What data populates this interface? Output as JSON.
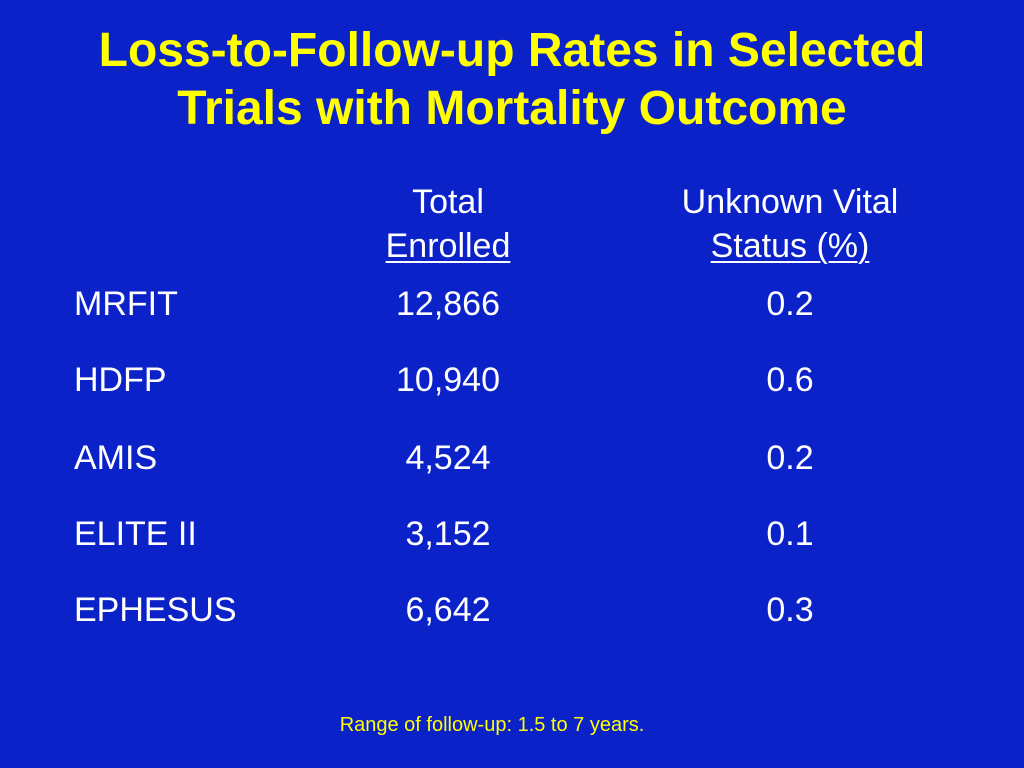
{
  "title": {
    "line1": "Loss-to-Follow-up Rates in Selected",
    "line2": "Trials with Mortality Outcome"
  },
  "table": {
    "headers": {
      "total": [
        "Total",
        "Enrolled"
      ],
      "vital": [
        "Unknown Vital",
        "Status (%)"
      ]
    },
    "rows": [
      {
        "name": "MRFIT",
        "total": "12,866",
        "vital": "0.2"
      },
      {
        "name": "HDFP",
        "total": "10,940",
        "vital": "0.6"
      },
      {
        "name": "AMIS",
        "total": "4,524",
        "vital": "0.2"
      },
      {
        "name": "ELITE II",
        "total": "3,152",
        "vital": "0.1"
      },
      {
        "name": "EPHESUS",
        "total": "6,642",
        "vital": "0.3"
      }
    ]
  },
  "footnote": "Range of follow-up: 1.5 to 7 years.",
  "colors": {
    "background": "#0b22c8",
    "title": "#ffff00",
    "text": "#ffffff",
    "footnote": "#ffff00"
  }
}
